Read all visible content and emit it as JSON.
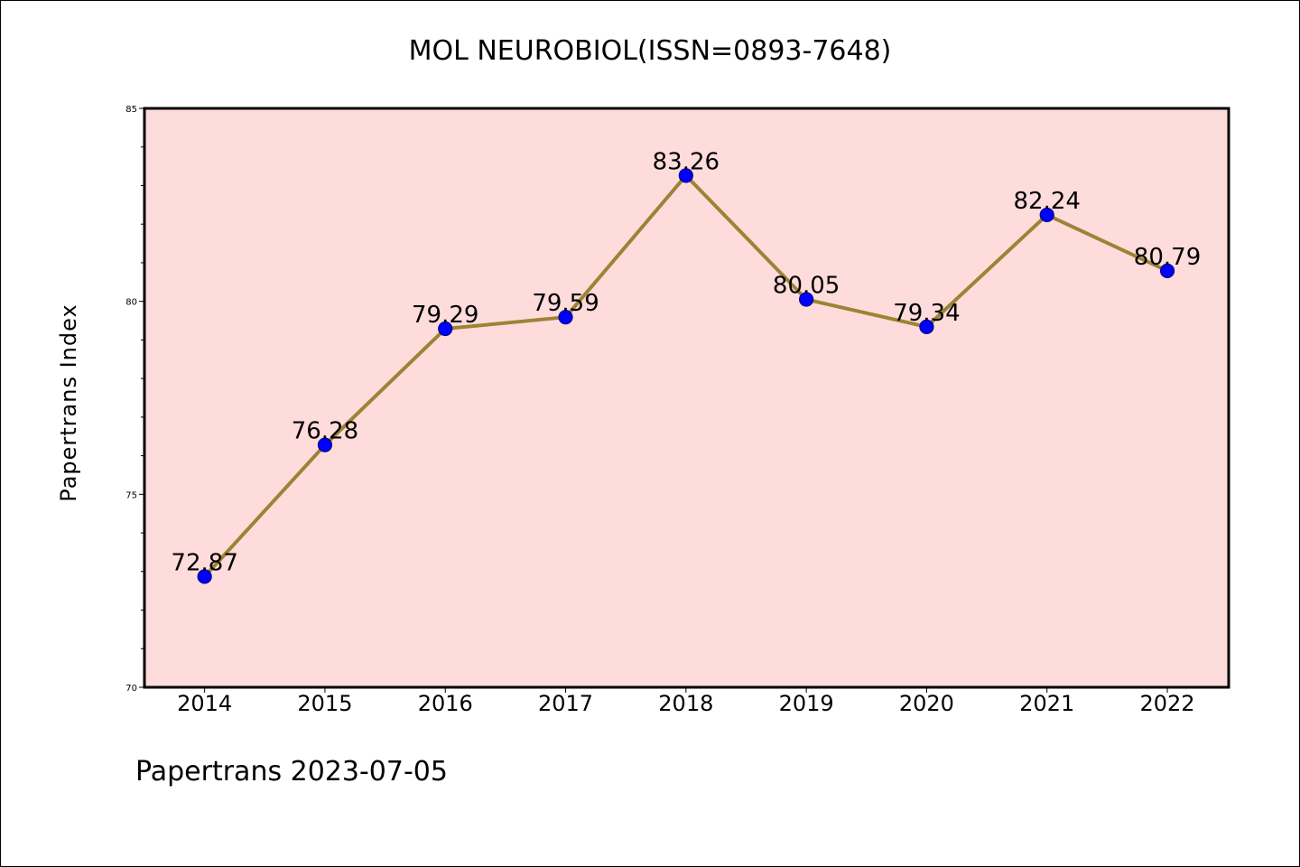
{
  "chart_data": {
    "type": "line",
    "title": "MOL NEUROBIOL(ISSN=0893-7648)",
    "xlabel": "",
    "ylabel": "Papertrans Index",
    "categories": [
      "2014",
      "2015",
      "2016",
      "2017",
      "2018",
      "2019",
      "2020",
      "2021",
      "2022"
    ],
    "values": [
      72.87,
      76.28,
      79.29,
      79.59,
      83.26,
      80.05,
      79.34,
      82.24,
      80.79
    ],
    "data_labels": [
      "72.87",
      "76.28",
      "79.29",
      "79.59",
      "83.26",
      "80.05",
      "79.34",
      "82.24",
      "80.79"
    ],
    "ylim": [
      70,
      85
    ],
    "yticks": [
      70,
      75,
      80,
      85
    ],
    "ytick_labels": [
      "70",
      "75",
      "80",
      "85"
    ],
    "grid": false,
    "legend": "none",
    "colors": {
      "plot_background": "#ffdcdc",
      "line": "#9c8434",
      "marker": "#0000ff",
      "marker_edge": "#00008b"
    }
  },
  "footer": "Papertrans 2023-07-05"
}
